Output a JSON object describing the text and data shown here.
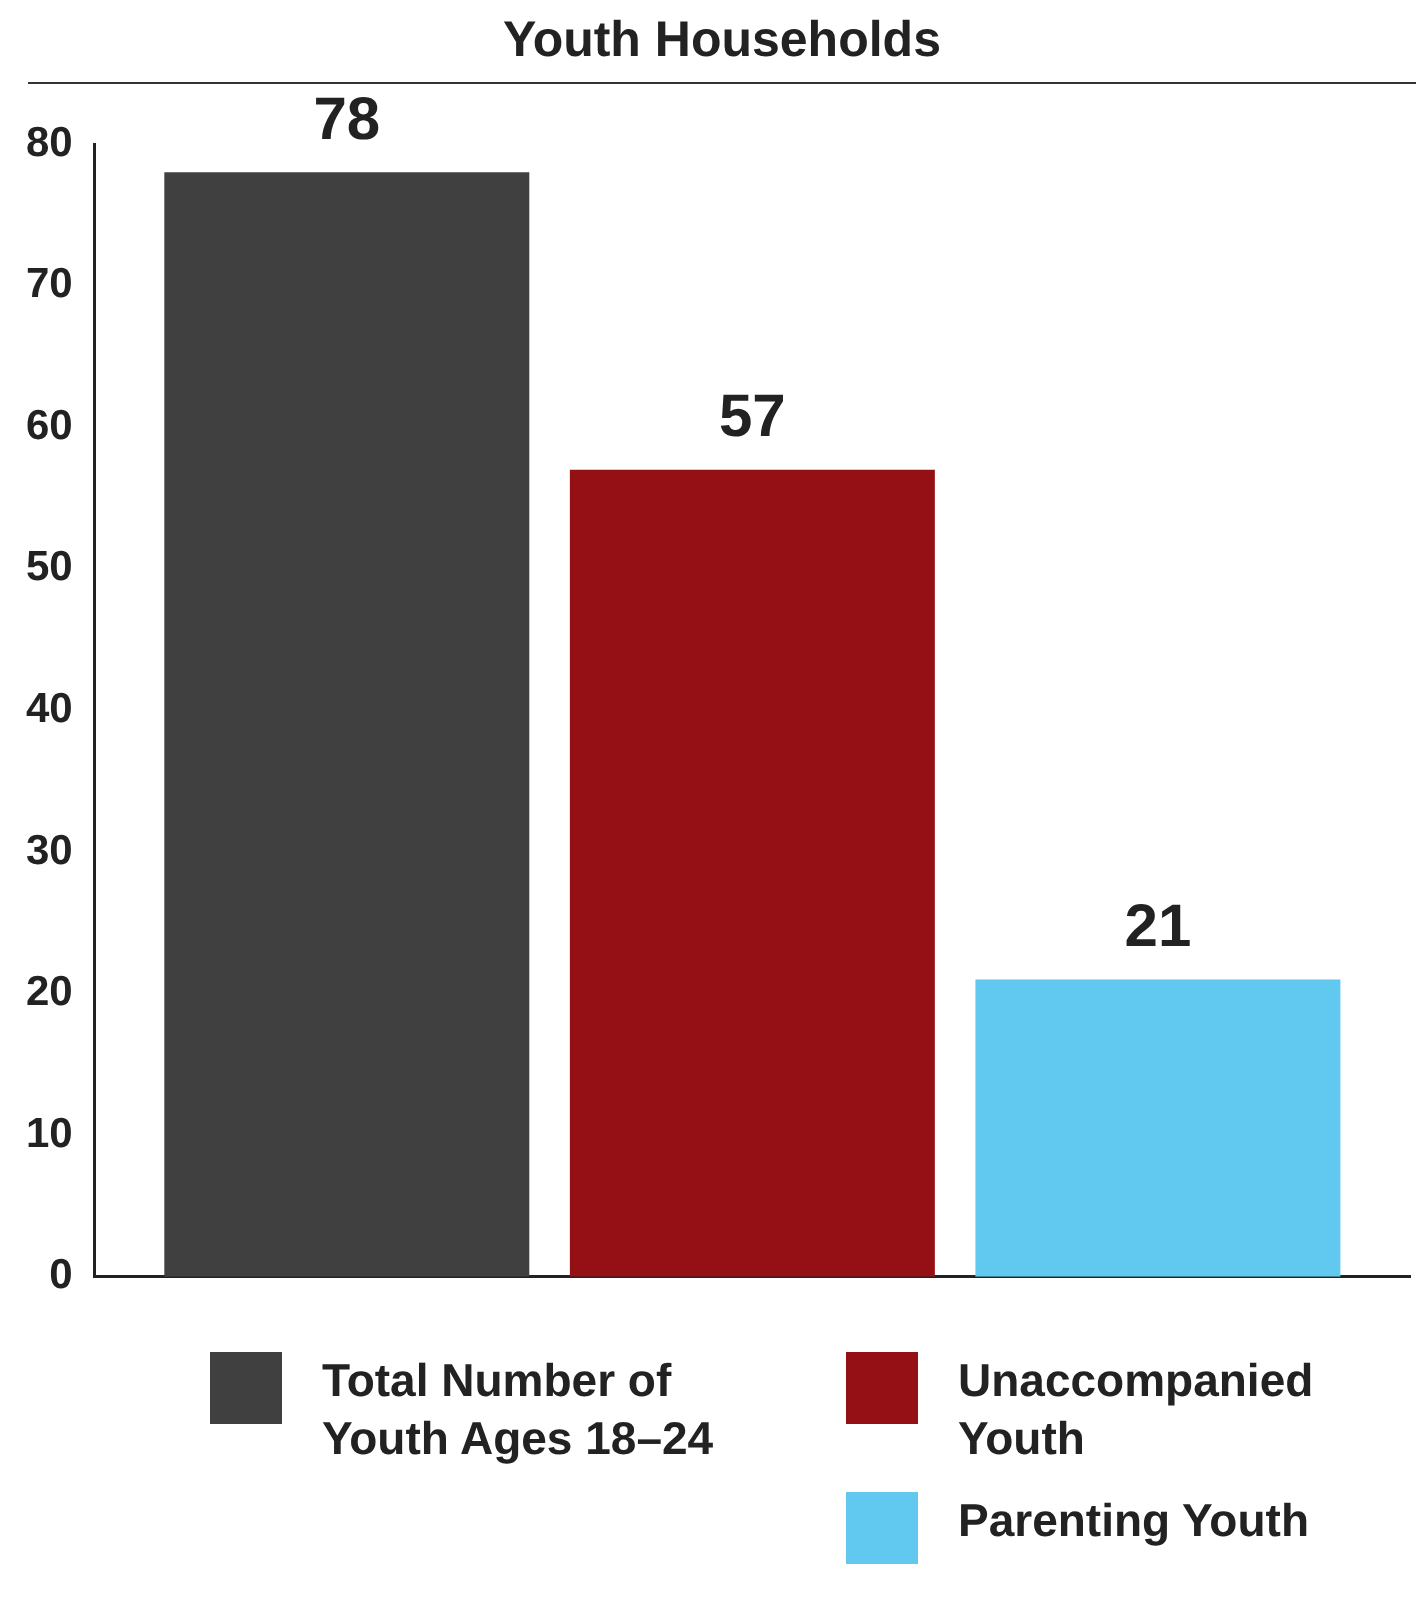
{
  "chart_data": {
    "type": "bar",
    "title": "Youth Households",
    "categories": [
      null
    ],
    "series": [
      {
        "name": "Total Number of Youth Ages 18–24",
        "color": "#404040",
        "values": [
          78
        ]
      },
      {
        "name": "Unaccompanied Youth",
        "color": "#941015",
        "values": [
          57
        ]
      },
      {
        "name": "Parenting Youth",
        "color": "#61c9ef",
        "values": [
          21
        ]
      }
    ],
    "ylim": [
      0,
      80
    ],
    "yticks": [
      0,
      10,
      20,
      30,
      40,
      50,
      60,
      70,
      80
    ],
    "grid": false,
    "legend": "bottom",
    "data_labels": true,
    "tick_labels": "y"
  }
}
